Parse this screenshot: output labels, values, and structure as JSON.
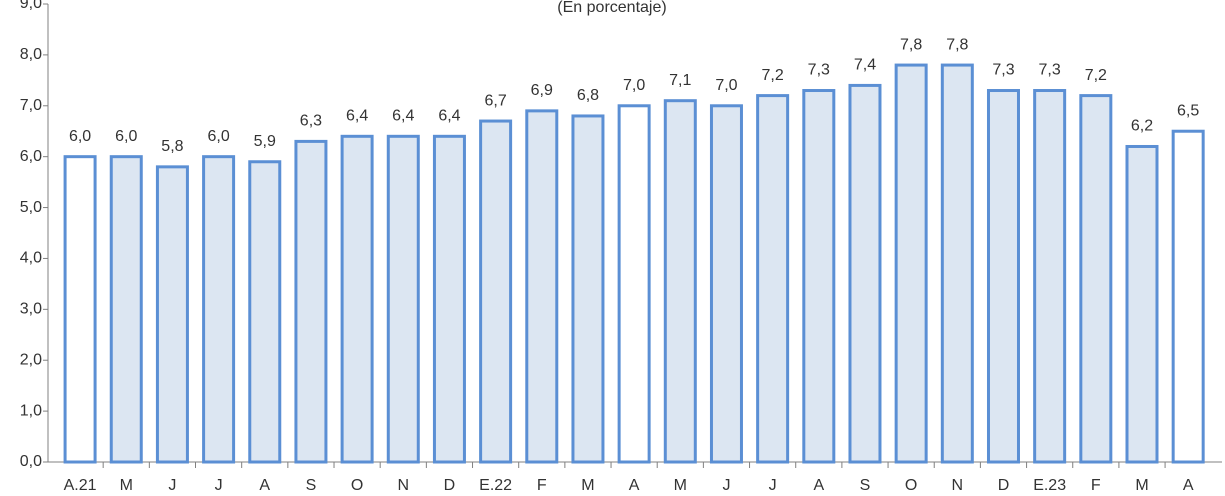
{
  "chart_data": {
    "type": "bar",
    "subtitle": "(En porcentaje)",
    "categories": [
      "A.21",
      "M",
      "J",
      "J",
      "A",
      "S",
      "O",
      "N",
      "D",
      "E.22",
      "F",
      "M",
      "A",
      "M",
      "J",
      "J",
      "A",
      "S",
      "O",
      "N",
      "D",
      "E.23",
      "F",
      "M",
      "A"
    ],
    "values": [
      6.0,
      6.0,
      5.8,
      6.0,
      5.9,
      6.3,
      6.4,
      6.4,
      6.4,
      6.7,
      6.9,
      6.8,
      7.0,
      7.1,
      7.0,
      7.2,
      7.3,
      7.4,
      7.8,
      7.8,
      7.3,
      7.3,
      7.2,
      6.2,
      6.5
    ],
    "value_labels": [
      "6,0",
      "6,0",
      "5,8",
      "6,0",
      "5,9",
      "6,3",
      "6,4",
      "6,4",
      "6,4",
      "6,7",
      "6,9",
      "6,8",
      "7,0",
      "7,1",
      "7,0",
      "7,2",
      "7,3",
      "7,4",
      "7,8",
      "7,8",
      "7,3",
      "7,3",
      "7,2",
      "6,2",
      "6,5"
    ],
    "colors": [
      "#ffffff",
      "#dce6f2",
      "#dce6f2",
      "#dce6f2",
      "#dce6f2",
      "#dce6f2",
      "#dce6f2",
      "#dce6f2",
      "#dce6f2",
      "#dce6f2",
      "#dce6f2",
      "#dce6f2",
      "#ffffff",
      "#dce6f2",
      "#dce6f2",
      "#dce6f2",
      "#dce6f2",
      "#dce6f2",
      "#dce6f2",
      "#dce6f2",
      "#dce6f2",
      "#dce6f2",
      "#dce6f2",
      "#dce6f2",
      "#ffffff"
    ],
    "edge_color": "#5b8fd4",
    "ylim": [
      0,
      9
    ],
    "yticks": [
      {
        "value": 0,
        "label": "0,0"
      },
      {
        "value": 1,
        "label": "1,0"
      },
      {
        "value": 2,
        "label": "2,0"
      },
      {
        "value": 3,
        "label": "3,0"
      },
      {
        "value": 4,
        "label": "4,0"
      },
      {
        "value": 5,
        "label": "5,0"
      },
      {
        "value": 6,
        "label": "6,0"
      },
      {
        "value": 7,
        "label": "7,0"
      },
      {
        "value": 8,
        "label": "8,0"
      },
      {
        "value": 9,
        "label": "9,0"
      }
    ]
  }
}
